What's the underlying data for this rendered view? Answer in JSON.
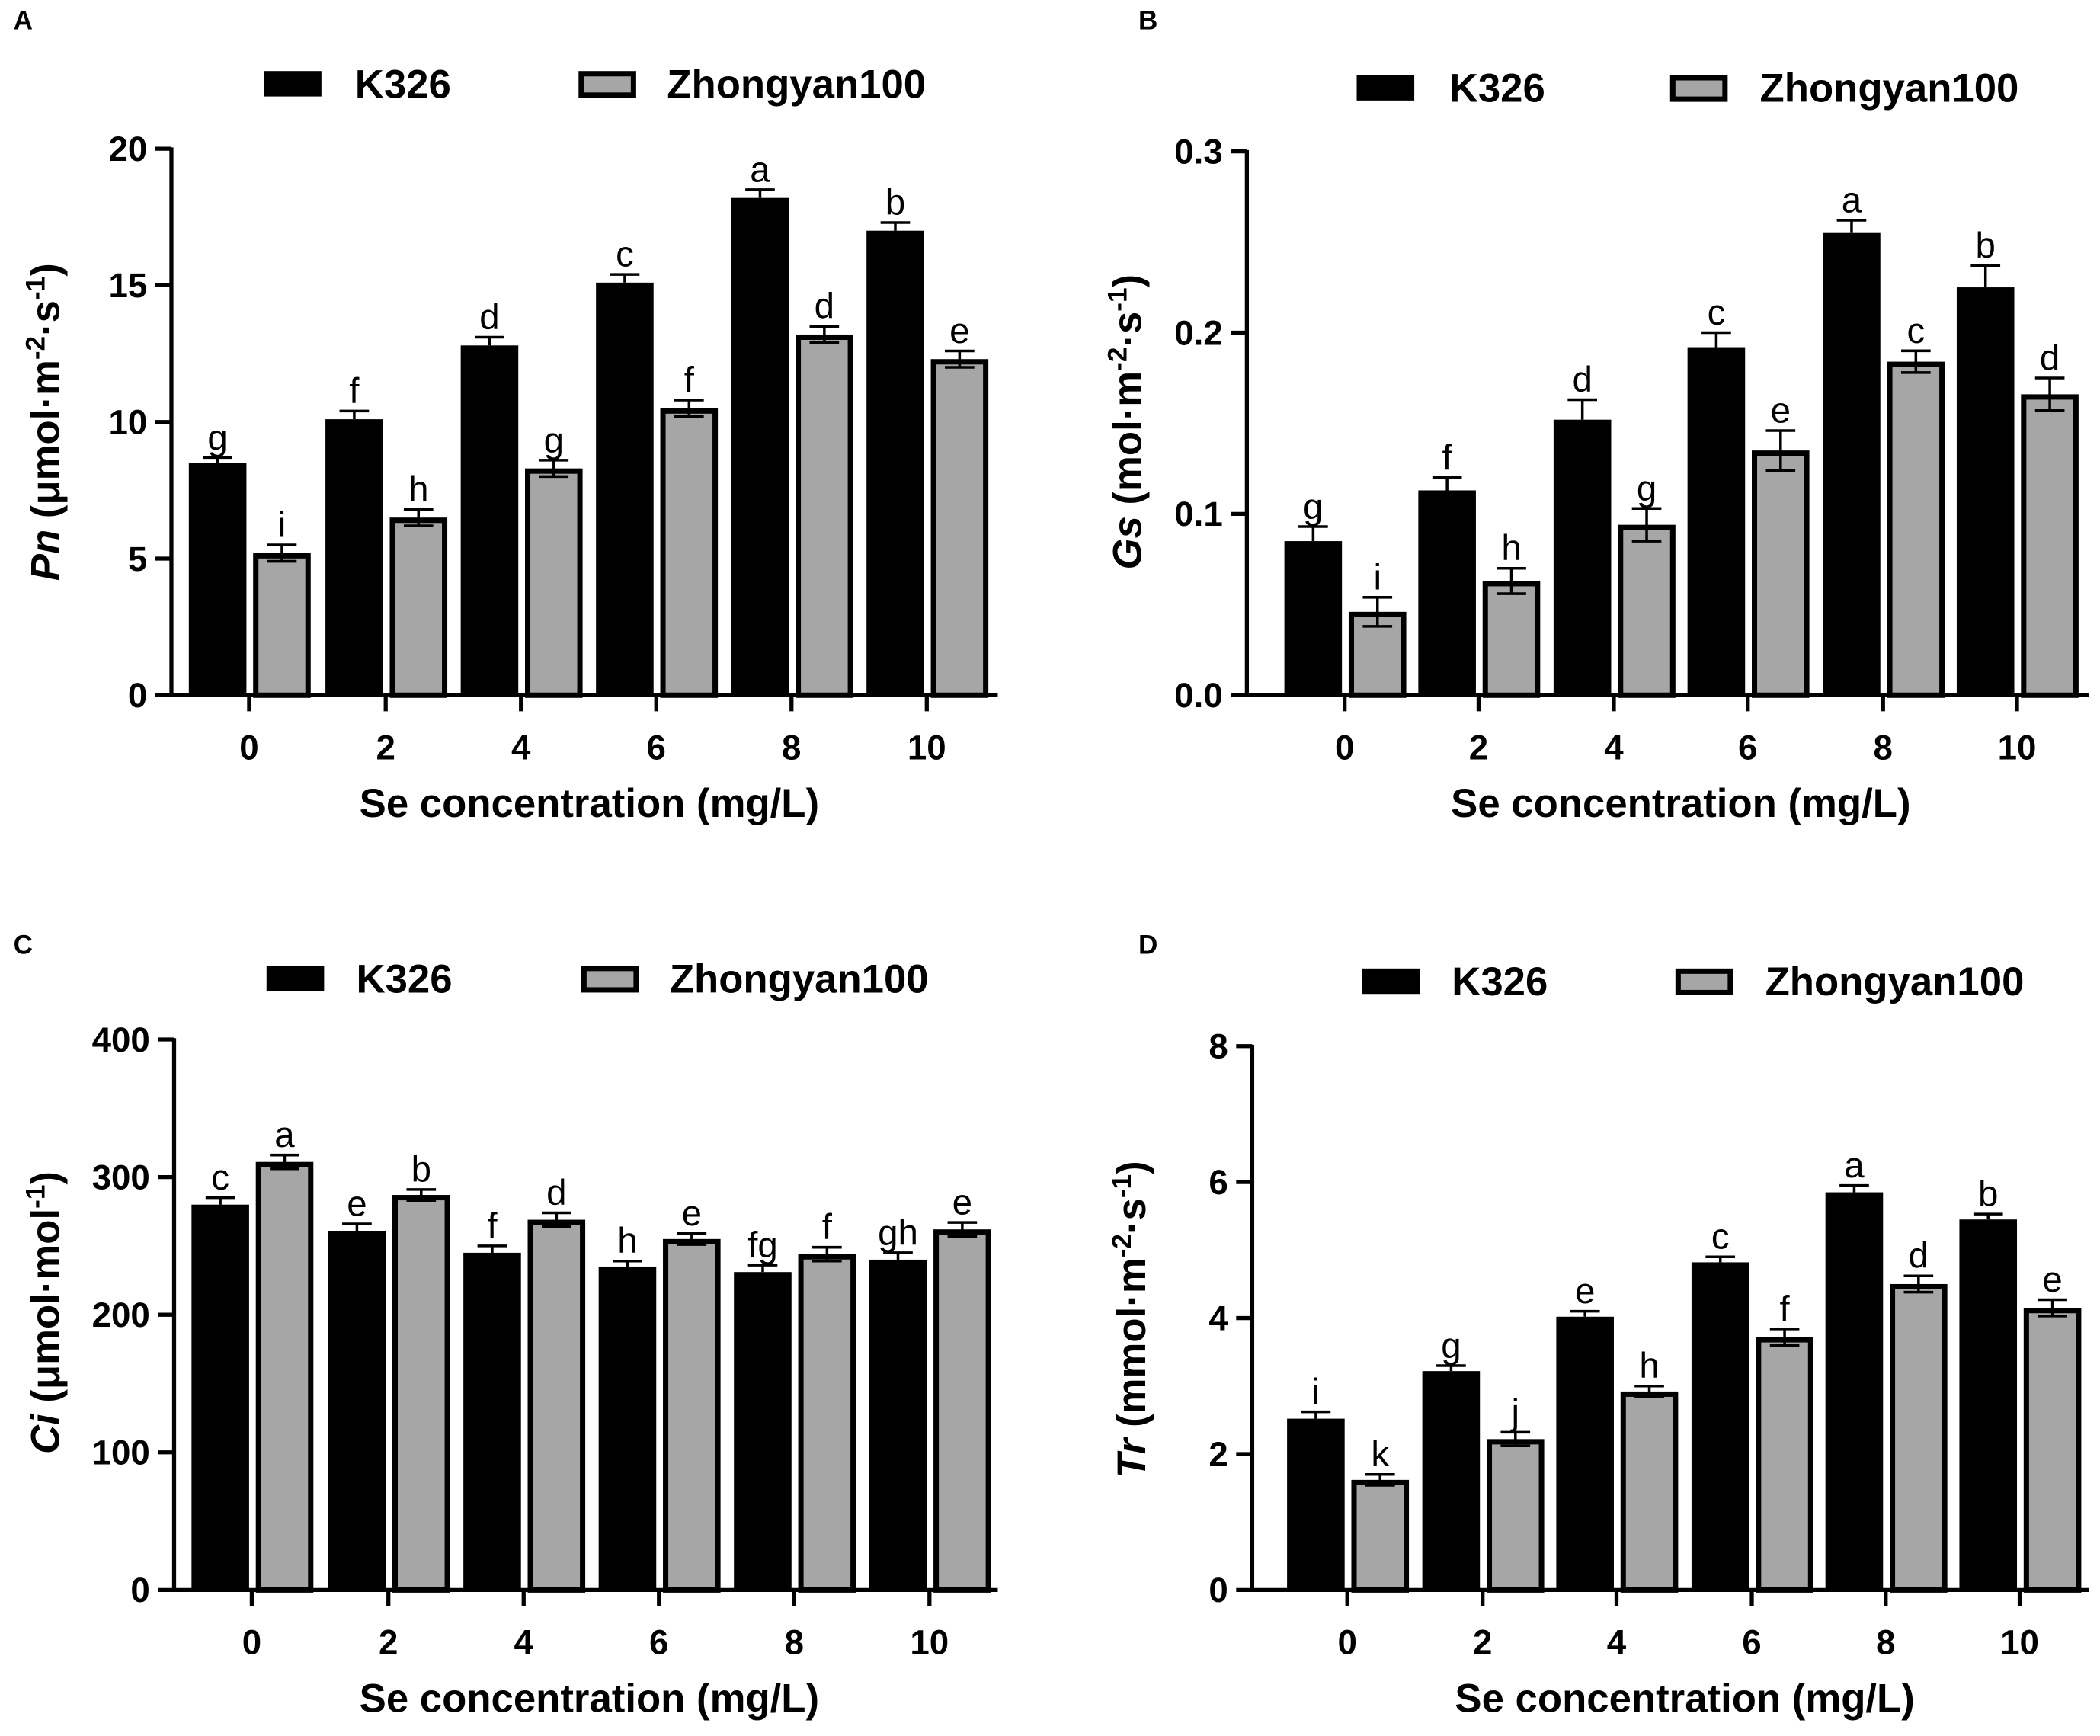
{
  "colors": {
    "k326": "#000000",
    "zhongyan100": "#a6a6a6",
    "axis": "#000000"
  },
  "chart_data": [
    {
      "panel": "A",
      "type": "bar",
      "title": "",
      "legend": [
        "K326",
        "Zhongyan100"
      ],
      "legend_placement": "top",
      "categories": [
        "0",
        "2",
        "4",
        "6",
        "8",
        "10"
      ],
      "xlabel": "Se concentration (mg/L)",
      "ylabel": [
        {
          "t": "Pn",
          "i": true
        },
        {
          "t": " (μmol·m"
        },
        {
          "t": "-2",
          "sup": true
        },
        {
          "t": "·s"
        },
        {
          "t": "-1",
          "sup": true
        },
        {
          "t": ")"
        }
      ],
      "ylim": [
        0,
        20
      ],
      "yticks": [
        0,
        5,
        10,
        15,
        20
      ],
      "ytick_labels": [
        "0",
        "5",
        "10",
        "15",
        "20"
      ],
      "series": [
        {
          "name": "K326",
          "values": [
            8.5,
            10.1,
            12.8,
            15.1,
            18.2,
            17.0
          ],
          "errors": [
            0.2,
            0.3,
            0.3,
            0.3,
            0.3,
            0.3
          ],
          "letters": [
            "g",
            "f",
            "d",
            "c",
            "a",
            "b"
          ]
        },
        {
          "name": "Zhongyan100",
          "values": [
            5.2,
            6.5,
            8.3,
            10.5,
            13.2,
            12.3
          ],
          "errors": [
            0.3,
            0.3,
            0.3,
            0.3,
            0.3,
            0.3
          ],
          "letters": [
            "i",
            "h",
            "g",
            "f",
            "d",
            "e"
          ]
        }
      ]
    },
    {
      "panel": "B",
      "type": "bar",
      "title": "",
      "legend": [
        "K326",
        "Zhongyan100"
      ],
      "legend_placement": "top",
      "categories": [
        "0",
        "2",
        "4",
        "6",
        "8",
        "10"
      ],
      "xlabel": "Se concentration (mg/L)",
      "ylabel": [
        {
          "t": "Gs",
          "i": true
        },
        {
          "t": " (mol·m"
        },
        {
          "t": "-2",
          "sup": true
        },
        {
          "t": "·s"
        },
        {
          "t": "-1",
          "sup": true
        },
        {
          "t": ")"
        }
      ],
      "ylim": [
        0,
        0.3
      ],
      "yticks": [
        0,
        0.1,
        0.2,
        0.3
      ],
      "ytick_labels": [
        "0.0",
        "0.1",
        "0.2",
        "0.3"
      ],
      "series": [
        {
          "name": "K326",
          "values": [
            0.085,
            0.113,
            0.152,
            0.192,
            0.255,
            0.225
          ],
          "errors": [
            0.008,
            0.007,
            0.011,
            0.008,
            0.007,
            0.012
          ],
          "letters": [
            "g",
            "f",
            "d",
            "c",
            "a",
            "b"
          ]
        },
        {
          "name": "Zhongyan100",
          "values": [
            0.046,
            0.063,
            0.094,
            0.135,
            0.184,
            0.166
          ],
          "errors": [
            0.008,
            0.007,
            0.009,
            0.011,
            0.006,
            0.009
          ],
          "letters": [
            "i",
            "h",
            "g",
            "e",
            "c",
            "d"
          ]
        }
      ]
    },
    {
      "panel": "C",
      "type": "bar",
      "title": "",
      "legend": [
        "K326",
        "Zhongyan100"
      ],
      "legend_placement": "top",
      "categories": [
        "0",
        "2",
        "4",
        "6",
        "8",
        "10"
      ],
      "xlabel": "Se concentration (mg/L)",
      "ylabel": [
        {
          "t": "Ci",
          "i": true
        },
        {
          "t": " (μmol·mol"
        },
        {
          "t": "-1",
          "sup": true
        },
        {
          "t": ")"
        }
      ],
      "ylim": [
        0,
        400
      ],
      "yticks": [
        0,
        100,
        200,
        300,
        400
      ],
      "ytick_labels": [
        "0",
        "100",
        "200",
        "300",
        "400"
      ],
      "series": [
        {
          "name": "K326",
          "values": [
            280,
            261,
            245,
            235,
            231,
            240
          ],
          "errors": [
            5,
            5,
            5,
            4,
            5,
            5
          ],
          "letters": [
            "c",
            "e",
            "f",
            "h",
            "fg",
            "gh"
          ]
        },
        {
          "name": "Zhongyan100",
          "values": [
            311,
            287,
            269,
            255,
            244,
            262
          ],
          "errors": [
            5,
            4,
            5,
            4,
            5,
            5
          ],
          "letters": [
            "a",
            "b",
            "d",
            "e",
            "f",
            "e"
          ]
        }
      ]
    },
    {
      "panel": "D",
      "type": "bar",
      "title": "",
      "legend": [
        "K326",
        "Zhongyan100"
      ],
      "legend_placement": "top",
      "categories": [
        "0",
        "2",
        "4",
        "6",
        "8",
        "10"
      ],
      "xlabel": "Se concentration (mg/L)",
      "ylabel": [
        {
          "t": "Tr",
          "i": true
        },
        {
          "t": " (mmol·m"
        },
        {
          "t": "-2",
          "sup": true
        },
        {
          "t": "·s"
        },
        {
          "t": "-1",
          "sup": true
        },
        {
          "t": ")"
        }
      ],
      "ylim": [
        0,
        8
      ],
      "yticks": [
        0,
        2,
        4,
        6,
        8
      ],
      "ytick_labels": [
        "0",
        "2",
        "4",
        "6",
        "8"
      ],
      "series": [
        {
          "name": "K326",
          "values": [
            2.52,
            3.22,
            4.02,
            4.82,
            5.85,
            5.45
          ],
          "errors": [
            0.1,
            0.08,
            0.08,
            0.08,
            0.1,
            0.08
          ],
          "letters": [
            "i",
            "g",
            "e",
            "c",
            "a",
            "b"
          ]
        },
        {
          "name": "Zhongyan100",
          "values": [
            1.62,
            2.22,
            2.92,
            3.72,
            4.5,
            4.15
          ],
          "errors": [
            0.08,
            0.1,
            0.08,
            0.12,
            0.12,
            0.12
          ],
          "letters": [
            "k",
            "j",
            "h",
            "f",
            "d",
            "e"
          ]
        }
      ]
    }
  ]
}
